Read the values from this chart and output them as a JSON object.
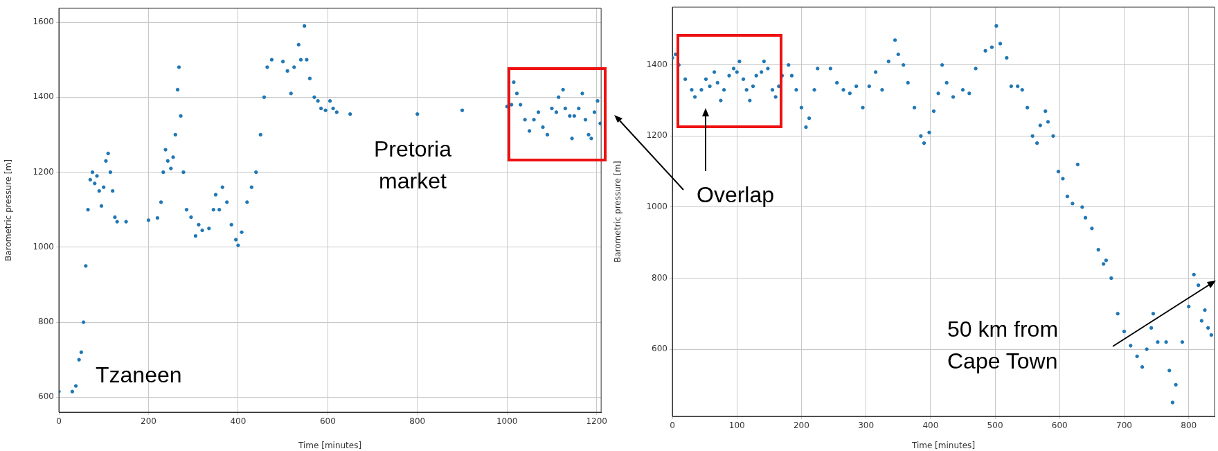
{
  "chart_data": [
    {
      "type": "scatter",
      "xlabel": "Time [minutes]",
      "ylabel": "Barometric pressure [m]",
      "xlim": [
        0,
        1210
      ],
      "ylim": [
        560,
        1637
      ],
      "xticks": [
        0,
        200,
        400,
        600,
        800,
        1000,
        1200
      ],
      "yticks": [
        600,
        800,
        1000,
        1200,
        1400,
        1600
      ],
      "grid": true,
      "marker": "circle",
      "annotations": [
        "Tzaneen",
        "Pretoria market"
      ],
      "series": [
        {
          "color": "#1f77b4",
          "x": [
            0,
            30,
            38,
            45,
            50,
            55,
            60,
            65,
            70,
            75,
            80,
            85,
            90,
            95,
            100,
            105,
            110,
            115,
            120,
            125,
            130,
            150,
            200,
            220,
            228,
            233,
            238,
            243,
            250,
            255,
            260,
            265,
            268,
            272,
            278,
            285,
            295,
            305,
            312,
            320,
            335,
            345,
            350,
            358,
            365,
            375,
            385,
            395,
            400,
            408,
            420,
            430,
            440,
            450,
            458,
            465,
            475,
            500,
            510,
            518,
            525,
            535,
            540,
            548,
            553,
            560,
            570,
            578,
            585,
            595,
            605,
            612,
            620,
            650,
            800,
            900,
            1000,
            1010,
            1015,
            1022,
            1030,
            1040,
            1050,
            1060,
            1070,
            1080,
            1090,
            1100,
            1110,
            1115,
            1125,
            1130,
            1140,
            1145,
            1150,
            1160,
            1168,
            1175,
            1182,
            1188,
            1195,
            1202,
            1208
          ],
          "values": [
            615,
            615,
            630,
            700,
            720,
            800,
            950,
            1100,
            1180,
            1200,
            1170,
            1190,
            1150,
            1110,
            1160,
            1230,
            1250,
            1200,
            1150,
            1080,
            1068,
            1068,
            1072,
            1078,
            1120,
            1200,
            1260,
            1230,
            1210,
            1240,
            1300,
            1420,
            1480,
            1350,
            1200,
            1100,
            1080,
            1030,
            1060,
            1045,
            1050,
            1100,
            1140,
            1100,
            1160,
            1120,
            1060,
            1020,
            1005,
            1040,
            1120,
            1160,
            1200,
            1300,
            1400,
            1480,
            1500,
            1495,
            1470,
            1410,
            1480,
            1540,
            1500,
            1590,
            1500,
            1450,
            1400,
            1390,
            1370,
            1365,
            1390,
            1370,
            1360,
            1355,
            1355,
            1365,
            1375,
            1380,
            1440,
            1410,
            1380,
            1340,
            1310,
            1340,
            1360,
            1320,
            1300,
            1370,
            1360,
            1400,
            1420,
            1370,
            1350,
            1290,
            1350,
            1370,
            1410,
            1340,
            1300,
            1290,
            1360,
            1390,
            1330
          ]
        }
      ]
    },
    {
      "type": "scatter",
      "xlabel": "Time [minutes]",
      "ylabel": "Barometric pressure [m]",
      "xlim": [
        0,
        840
      ],
      "ylim": [
        411,
        1563
      ],
      "xticks": [
        0,
        100,
        200,
        300,
        400,
        500,
        600,
        700,
        800
      ],
      "yticks": [
        600,
        800,
        1000,
        1200,
        1400
      ],
      "grid": true,
      "marker": "circle",
      "annotations": [
        "Overlap",
        "50 km from Cape Town"
      ],
      "series": [
        {
          "color": "#1f77b4",
          "x": [
            0,
            5,
            10,
            20,
            30,
            35,
            45,
            52,
            58,
            65,
            70,
            75,
            80,
            88,
            95,
            100,
            104,
            110,
            115,
            120,
            125,
            130,
            138,
            142,
            148,
            155,
            160,
            165,
            170,
            180,
            185,
            192,
            200,
            207,
            212,
            220,
            225,
            245,
            255,
            265,
            275,
            285,
            295,
            305,
            315,
            325,
            335,
            345,
            350,
            358,
            365,
            375,
            385,
            390,
            398,
            405,
            412,
            418,
            425,
            435,
            450,
            460,
            470,
            485,
            495,
            502,
            508,
            518,
            525,
            535,
            542,
            550,
            558,
            565,
            570,
            578,
            582,
            590,
            598,
            605,
            612,
            620,
            628,
            635,
            640,
            650,
            660,
            668,
            672,
            680,
            690,
            700,
            710,
            720,
            728,
            735,
            742,
            745,
            752,
            765,
            770,
            775,
            780,
            790,
            800,
            808,
            815,
            820,
            825,
            830,
            835
          ],
          "values": [
            1420,
            1430,
            1400,
            1360,
            1330,
            1310,
            1330,
            1360,
            1340,
            1380,
            1350,
            1300,
            1330,
            1370,
            1390,
            1380,
            1410,
            1360,
            1330,
            1300,
            1340,
            1370,
            1380,
            1410,
            1390,
            1330,
            1310,
            1340,
            1370,
            1400,
            1370,
            1330,
            1280,
            1225,
            1250,
            1330,
            1390,
            1390,
            1350,
            1330,
            1320,
            1340,
            1280,
            1340,
            1380,
            1330,
            1410,
            1470,
            1430,
            1400,
            1350,
            1280,
            1200,
            1180,
            1210,
            1270,
            1320,
            1400,
            1350,
            1310,
            1330,
            1320,
            1390,
            1440,
            1450,
            1510,
            1460,
            1420,
            1340,
            1340,
            1330,
            1280,
            1200,
            1180,
            1230,
            1270,
            1240,
            1200,
            1100,
            1080,
            1030,
            1010,
            1120,
            1000,
            970,
            940,
            880,
            840,
            850,
            800,
            700,
            650,
            610,
            580,
            550,
            600,
            660,
            700,
            620,
            620,
            540,
            450,
            500,
            620,
            720,
            810,
            780,
            680,
            710,
            660,
            640
          ]
        }
      ]
    }
  ]
}
